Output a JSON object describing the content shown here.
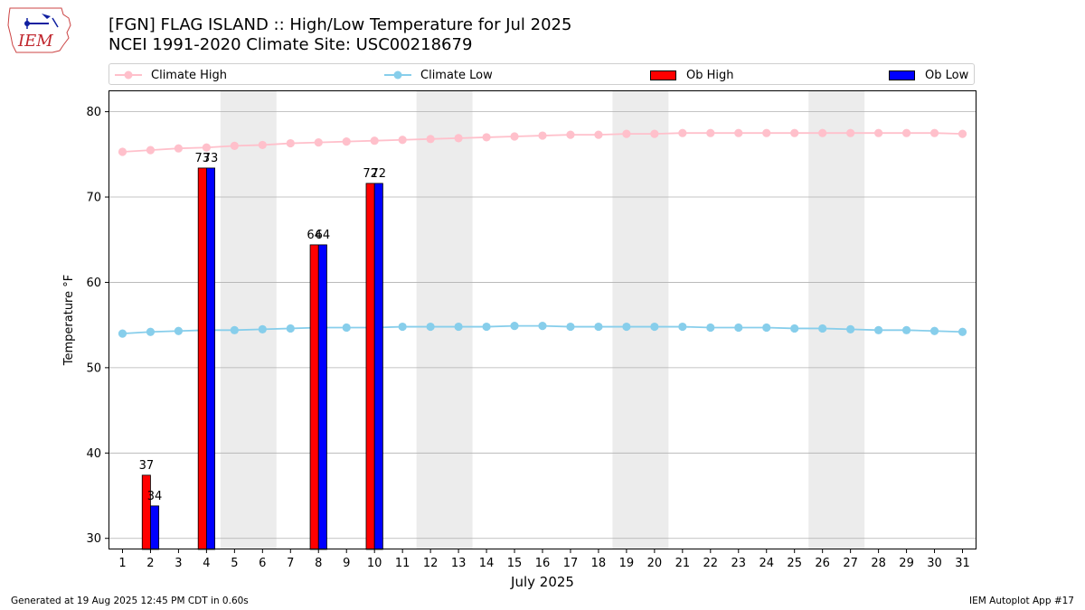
{
  "title": {
    "line1": "[FGN] FLAG ISLAND :: High/Low Temperature for Jul 2025",
    "line2": "NCEI 1991-2020 Climate Site: USC00218679"
  },
  "logo": {
    "text": "IEM"
  },
  "legend": {
    "items": [
      {
        "label": "Climate High",
        "color": "#ffc0cb",
        "kind": "line"
      },
      {
        "label": "Climate Low",
        "color": "#87ceeb",
        "kind": "line"
      },
      {
        "label": "Ob High",
        "color": "#ff0000",
        "kind": "box"
      },
      {
        "label": "Ob Low",
        "color": "#0000ff",
        "kind": "box"
      }
    ]
  },
  "footer": {
    "left": "Generated at 19 Aug 2025 12:45 PM CDT in 0.60s",
    "right": "IEM Autoplot App #17"
  },
  "chart_data": {
    "type": "bar",
    "xlabel": "July 2025",
    "ylabel": "Temperature °F",
    "xlim": [
      0.5,
      31.5
    ],
    "ylim": [
      28.7,
      82.5
    ],
    "yticks": [
      30,
      40,
      50,
      60,
      70,
      80
    ],
    "grid": "y",
    "legend_position": "top",
    "weekend_shading": [
      [
        4.5,
        6.5
      ],
      [
        11.5,
        13.5
      ],
      [
        18.5,
        20.5
      ],
      [
        25.5,
        27.5
      ]
    ],
    "days": [
      1,
      2,
      3,
      4,
      5,
      6,
      7,
      8,
      9,
      10,
      11,
      12,
      13,
      14,
      15,
      16,
      17,
      18,
      19,
      20,
      21,
      22,
      23,
      24,
      25,
      26,
      27,
      28,
      29,
      30,
      31
    ],
    "series": [
      {
        "name": "Climate High",
        "kind": "line",
        "color": "#ffc0cb",
        "values": [
          75.3,
          75.5,
          75.7,
          75.8,
          76.0,
          76.1,
          76.3,
          76.4,
          76.5,
          76.6,
          76.7,
          76.8,
          76.9,
          77.0,
          77.1,
          77.2,
          77.3,
          77.3,
          77.4,
          77.4,
          77.5,
          77.5,
          77.5,
          77.5,
          77.5,
          77.5,
          77.5,
          77.5,
          77.5,
          77.5,
          77.4
        ]
      },
      {
        "name": "Climate Low",
        "kind": "line",
        "color": "#87ceeb",
        "values": [
          54.0,
          54.2,
          54.3,
          54.4,
          54.4,
          54.5,
          54.6,
          54.7,
          54.7,
          54.7,
          54.8,
          54.8,
          54.8,
          54.8,
          54.9,
          54.9,
          54.8,
          54.8,
          54.8,
          54.8,
          54.8,
          54.7,
          54.7,
          54.7,
          54.6,
          54.6,
          54.5,
          54.4,
          54.4,
          54.3,
          54.2
        ]
      },
      {
        "name": "Ob High",
        "kind": "bar",
        "color": "#ff0000",
        "points": [
          {
            "day": 2,
            "value": 37.4,
            "label": "37"
          },
          {
            "day": 4,
            "value": 73.4,
            "label": "73"
          },
          {
            "day": 8,
            "value": 64.4,
            "label": "64"
          },
          {
            "day": 10,
            "value": 71.6,
            "label": "72"
          }
        ]
      },
      {
        "name": "Ob Low",
        "kind": "bar",
        "color": "#0000ff",
        "points": [
          {
            "day": 2,
            "value": 33.8,
            "label": "34"
          },
          {
            "day": 4,
            "value": 73.4,
            "label": "73"
          },
          {
            "day": 8,
            "value": 64.4,
            "label": "64"
          },
          {
            "day": 10,
            "value": 71.6,
            "label": "72"
          }
        ]
      }
    ]
  }
}
